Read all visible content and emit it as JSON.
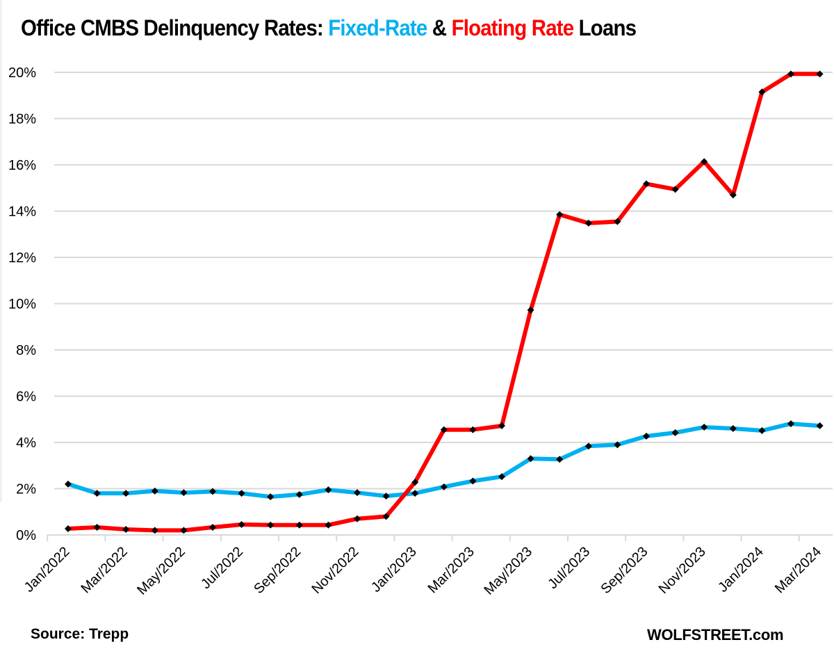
{
  "chart_data": {
    "type": "line",
    "title": {
      "prefix": "Office CMBS Delinquency Rates: ",
      "fixed_label": "Fixed-Rate",
      "joiner": " & ",
      "floating_label": "Floating Rate",
      "suffix": " Loans"
    },
    "xlabel": "",
    "ylabel": "",
    "ylim": [
      0,
      20
    ],
    "y_ticks": [
      "0%",
      "2%",
      "4%",
      "6%",
      "8%",
      "10%",
      "12%",
      "14%",
      "16%",
      "18%",
      "20%"
    ],
    "y_tick_values": [
      0,
      2,
      4,
      6,
      8,
      10,
      12,
      14,
      16,
      18,
      20
    ],
    "grid": "horizontal",
    "legend": "none (series identified by colored title words)",
    "x": [
      "Jan/2022",
      "Feb/2022",
      "Mar/2022",
      "Apr/2022",
      "May/2022",
      "Jun/2022",
      "Jul/2022",
      "Aug/2022",
      "Sep/2022",
      "Oct/2022",
      "Nov/2022",
      "Dec/2022",
      "Jan/2023",
      "Feb/2023",
      "Mar/2023",
      "Apr/2023",
      "May/2023",
      "Jun/2023",
      "Jul/2023",
      "Aug/2023",
      "Sep/2023",
      "Oct/2023",
      "Nov/2023",
      "Dec/2023",
      "Jan/2024",
      "Feb/2024",
      "Mar/2024"
    ],
    "x_tick_labels": [
      "Jan/2022",
      "Mar/2022",
      "May/2022",
      "Jul/2022",
      "Sep/2022",
      "Nov/2022",
      "Jan/2023",
      "Mar/2023",
      "May/2023",
      "Jul/2023",
      "Sep/2023",
      "Nov/2023",
      "Jan/2024",
      "Mar/2024"
    ],
    "series": [
      {
        "name": "Fixed-Rate",
        "color": "#00B0F0",
        "values": [
          2.2,
          1.8,
          1.8,
          1.9,
          1.83,
          1.88,
          1.8,
          1.65,
          1.75,
          1.95,
          1.83,
          1.68,
          1.8,
          2.08,
          2.33,
          2.52,
          3.3,
          3.27,
          3.84,
          3.9,
          4.27,
          4.42,
          4.66,
          4.6,
          4.51,
          4.81,
          4.72
        ]
      },
      {
        "name": "Floating Rate",
        "color": "#FF0000",
        "values": [
          0.27,
          0.33,
          0.24,
          0.2,
          0.2,
          0.33,
          0.45,
          0.43,
          0.43,
          0.43,
          0.7,
          0.8,
          2.28,
          4.55,
          4.55,
          4.72,
          9.72,
          13.85,
          13.48,
          13.55,
          15.18,
          14.94,
          16.14,
          14.7,
          19.15,
          19.93,
          19.93
        ]
      }
    ],
    "marker_color": "#000000",
    "source": "Source: Trepp",
    "credit": "WOLFSTREET.com"
  }
}
